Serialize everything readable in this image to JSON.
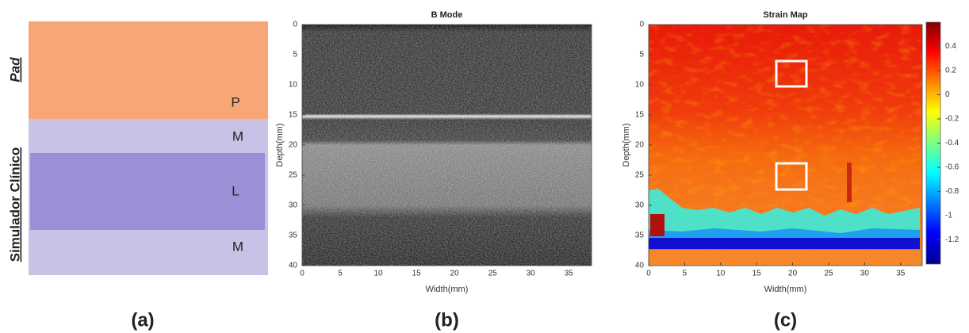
{
  "panel_a": {
    "side_labels": [
      "Pad",
      "Simulador Clínico"
    ],
    "layers": [
      {
        "label": "P"
      },
      {
        "label": "M"
      },
      {
        "label": "L"
      },
      {
        "label": "M"
      }
    ],
    "caption": "(a)"
  },
  "panel_b": {
    "title": "B Mode",
    "xlabel": "Width(mm)",
    "ylabel": "Depth(mm)",
    "xlim": [
      0,
      38
    ],
    "ylim": [
      0,
      40
    ],
    "xticks": [
      0,
      5,
      10,
      15,
      20,
      25,
      30,
      35
    ],
    "yticks": [
      0,
      5,
      10,
      15,
      20,
      25,
      30,
      35,
      40
    ],
    "caption": "(b)"
  },
  "panel_c": {
    "title": "Strain Map",
    "xlabel": "Width(mm)",
    "ylabel": "Depth(mm)",
    "xlim": [
      0,
      38
    ],
    "ylim": [
      0,
      40
    ],
    "xticks": [
      0,
      5,
      10,
      15,
      20,
      25,
      30,
      35
    ],
    "yticks": [
      0,
      5,
      10,
      15,
      20,
      25,
      30,
      35,
      40
    ],
    "colorbar": {
      "lim": [
        -1.4,
        0.6
      ],
      "ticks": [
        0.4,
        0.2,
        0,
        -0.2,
        -0.4,
        -0.6,
        -0.8,
        -1,
        -1.2
      ]
    },
    "caption": "(c)"
  }
}
